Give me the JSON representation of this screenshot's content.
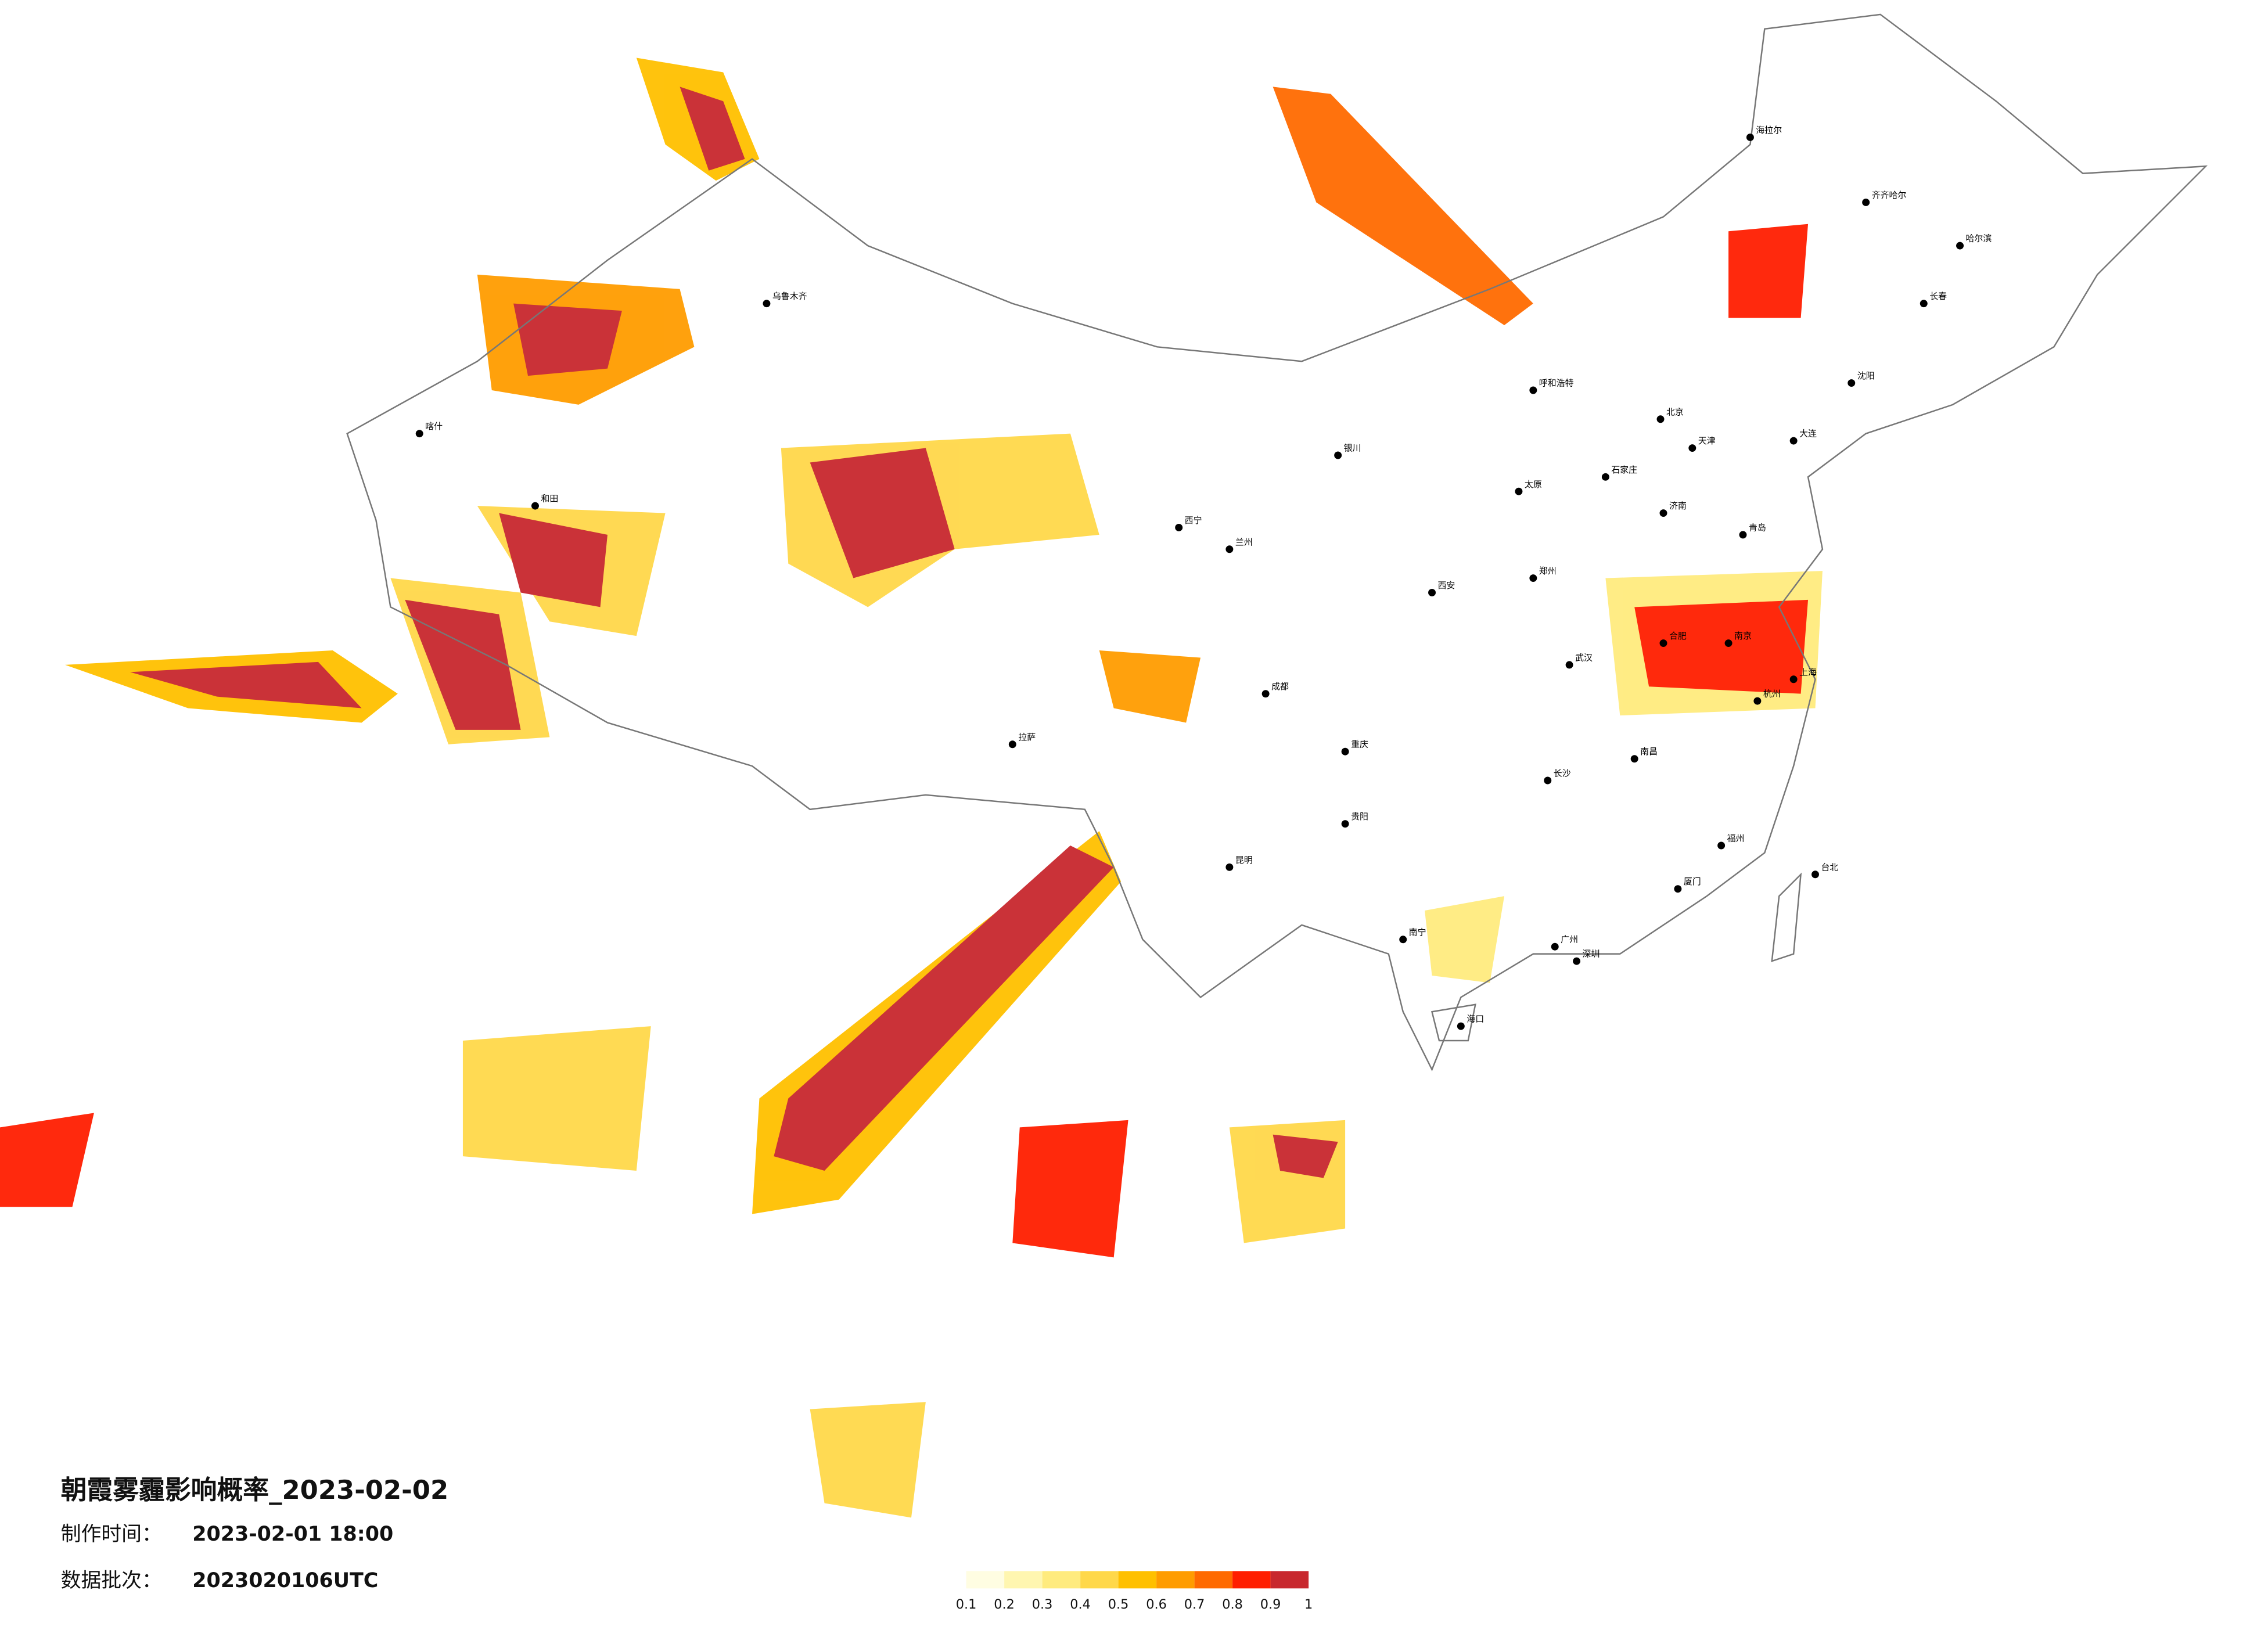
{
  "title": "朝霞雾霾影响概率_2023-02-02",
  "info": [
    {
      "label": "制作时间：",
      "value": "2023-02-01 18:00"
    },
    {
      "label": "数据批次：",
      "value": "2023020106UTC"
    }
  ],
  "legend": {
    "ticks": [
      0.1,
      0.2,
      0.3,
      0.4,
      0.5,
      0.6,
      0.7,
      0.8,
      0.9,
      1
    ],
    "colors": [
      "#fffde2",
      "#fff6b0",
      "#ffeb7e",
      "#ffd84a",
      "#ffc000",
      "#ff9c00",
      "#ff6a00",
      "#ff1e00",
      "#c8282e"
    ]
  },
  "cities": [
    "北京",
    "天津",
    "上海",
    "广州",
    "深圳",
    "重庆",
    "成都",
    "武汉",
    "西安",
    "郑州",
    "南京",
    "杭州",
    "长沙",
    "南昌",
    "福州",
    "昆明",
    "贵阳",
    "南宁",
    "海口",
    "兰州",
    "西宁",
    "银川",
    "呼和浩特",
    "乌鲁木齐",
    "拉萨",
    "哈尔滨",
    "长春",
    "沈阳",
    "济南",
    "石家庄",
    "太原",
    "合肥",
    "喀什",
    "和田",
    "齐齐哈尔",
    "海拉尔",
    "台北",
    "大连",
    "青岛",
    "厦门"
  ]
}
